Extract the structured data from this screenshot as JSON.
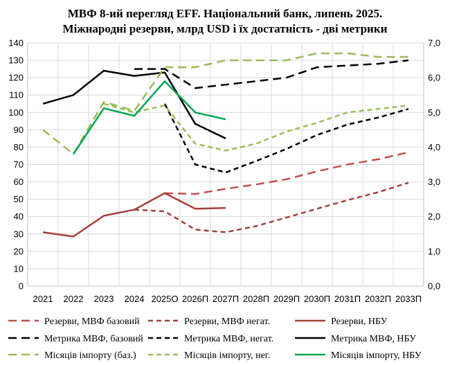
{
  "chart_data": {
    "type": "line",
    "title": "МВФ 8-ий перегляд EFF. Національний  банк, липень 2025.",
    "subtitle": "Міжнародні резерви, млрд USD і їх достатність  - дві метрики",
    "categories": [
      "2021",
      "2022",
      "2023",
      "2024",
      "2025О",
      "2026П",
      "2027П",
      "2028П",
      "2029П",
      "2030П",
      "2031П",
      "2032П",
      "2033П"
    ],
    "y_left": {
      "min": 0,
      "max": 140,
      "step": 10,
      "tick_labels": [
        "0",
        "10",
        "20",
        "30",
        "40",
        "50",
        "60",
        "70",
        "80",
        "90",
        "100",
        "110",
        "120",
        "130",
        "140"
      ]
    },
    "y_right": {
      "min": 0,
      "max": 7,
      "step": 1,
      "tick_labels": [
        "0,0",
        "1,0",
        "2,0",
        "3,0",
        "4,0",
        "5,0",
        "6,0",
        "7,0"
      ]
    },
    "series": [
      {
        "id": "res_base",
        "name": "Резерви, МВФ базовий",
        "axis": "left",
        "color": "#c0504d",
        "dash": "long",
        "values": [
          null,
          null,
          null,
          null,
          53.5,
          53,
          56,
          58.5,
          61.5,
          66,
          70,
          73,
          77
        ]
      },
      {
        "id": "res_neg",
        "name": "Резерви, МВФ негат.",
        "axis": "left",
        "color": "#a0403c",
        "dash": "short",
        "values": [
          null,
          null,
          null,
          44,
          43,
          32.5,
          31,
          34.5,
          39.5,
          44.5,
          49.5,
          54,
          59.5
        ]
      },
      {
        "id": "res_nbu",
        "name": "Резерви, НБУ",
        "axis": "left",
        "color": "#a5403c",
        "dash": "solid",
        "values": [
          31,
          28.5,
          40.5,
          44,
          53.5,
          44.5,
          45,
          null,
          null,
          null,
          null,
          null,
          null
        ]
      },
      {
        "id": "met_base",
        "name": "Метрика МВФ, базовий",
        "axis": "right",
        "color": "#000000",
        "dash": "long",
        "values": [
          null,
          null,
          null,
          6.25,
          6.25,
          5.7,
          5.8,
          5.9,
          6.0,
          6.3,
          6.35,
          6.4,
          6.5
        ]
      },
      {
        "id": "met_neg",
        "name": "Метрика МВФ,  негат.",
        "axis": "right",
        "color": "#000000",
        "dash": "short",
        "values": [
          null,
          null,
          null,
          null,
          5.25,
          3.5,
          3.27,
          3.6,
          3.95,
          4.35,
          4.65,
          4.85,
          5.1
        ]
      },
      {
        "id": "met_nbu",
        "name": "Метрика МВФ,  НБУ",
        "axis": "right",
        "color": "#000000",
        "dash": "solid",
        "values": [
          5.25,
          5.5,
          6.2,
          6.05,
          6.15,
          4.67,
          4.25,
          null,
          null,
          null,
          null,
          null,
          null
        ]
      },
      {
        "id": "imp_base",
        "name": "Місяців імпорту (баз.)",
        "axis": "right",
        "color": "#9bbb59",
        "dash": "long",
        "values": [
          4.5,
          3.8,
          5.3,
          5.05,
          6.3,
          6.3,
          6.5,
          6.5,
          6.5,
          6.7,
          6.7,
          6.6,
          6.6
        ]
      },
      {
        "id": "imp_neg",
        "name": "Місяців імпорту, нег.",
        "axis": "right",
        "color": "#9bbb59",
        "dash": "short",
        "values": [
          null,
          null,
          5.25,
          5.0,
          5.2,
          4.1,
          3.9,
          4.1,
          4.45,
          4.7,
          5.0,
          5.1,
          5.2
        ]
      },
      {
        "id": "imp_nbu",
        "name": "Місяців імпорту, НБУ",
        "axis": "right",
        "color": "#00a651",
        "dash": "solid",
        "values": [
          null,
          3.8,
          5.12,
          4.9,
          5.9,
          5.0,
          4.8,
          null,
          null,
          null,
          null,
          null,
          null
        ]
      }
    ],
    "legend": {
      "placement": "bottom",
      "rows": [
        [
          "res_base",
          "res_neg",
          "res_nbu"
        ],
        [
          "met_base",
          "met_neg",
          "met_nbu"
        ],
        [
          "imp_base",
          "imp_neg",
          "imp_nbu"
        ]
      ]
    },
    "grid": true
  }
}
